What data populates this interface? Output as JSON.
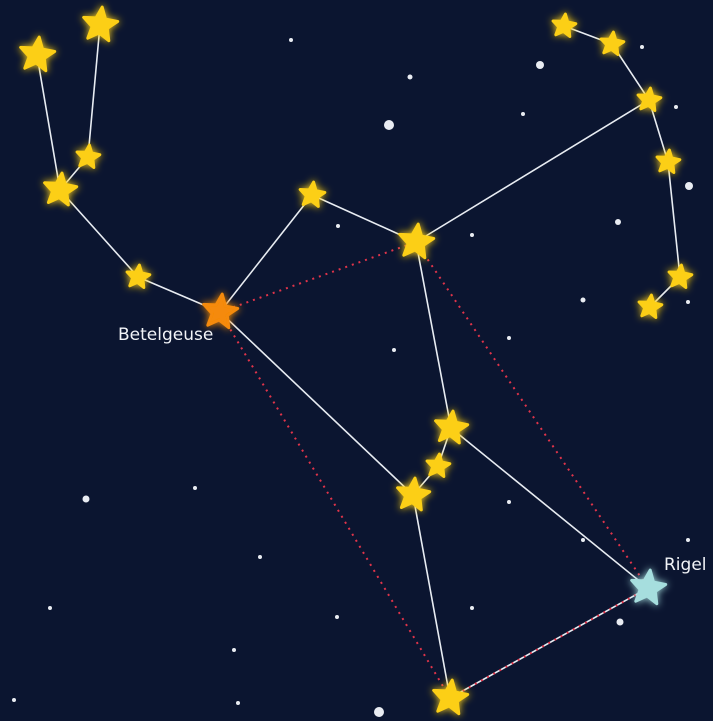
{
  "stars": [
    {
      "label": "Betelgeuse"
    },
    {
      "label": "Rigel"
    }
  ]
}
